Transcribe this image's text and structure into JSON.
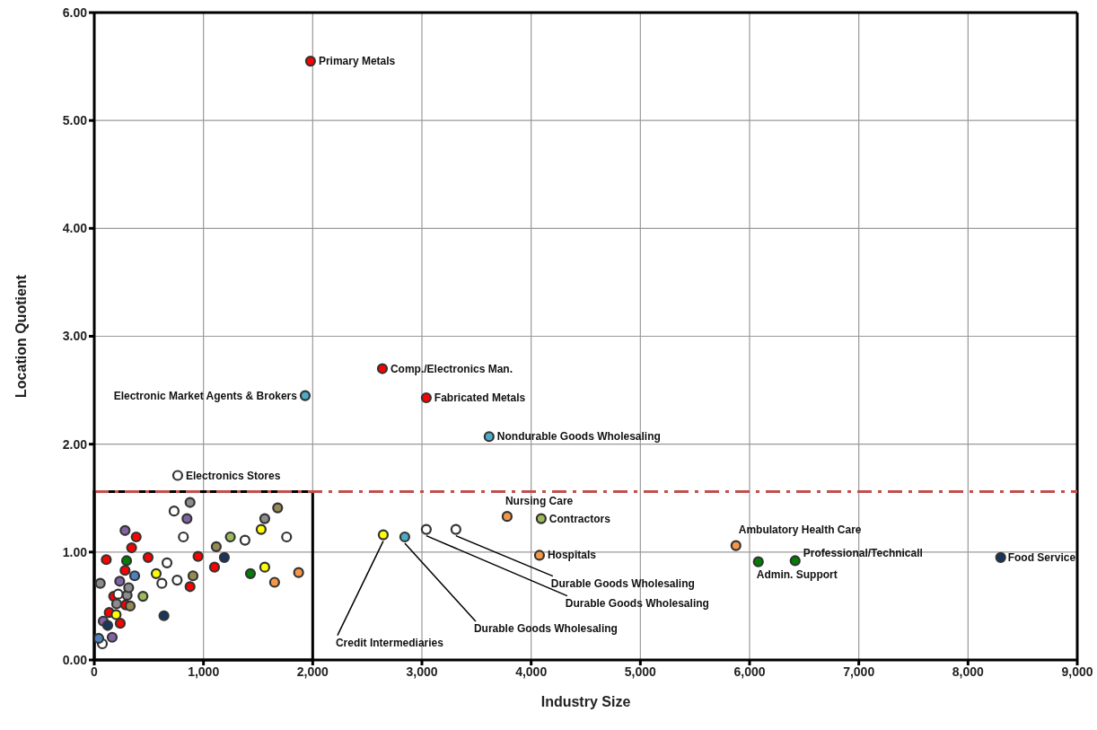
{
  "chart_data": {
    "type": "scatter",
    "xlabel": "Industry Size",
    "ylabel": "Location Quotient",
    "xlim": [
      0,
      9000
    ],
    "ylim": [
      0,
      6
    ],
    "xticks": [
      0,
      {
        "value": 1000,
        "label": "1,000"
      },
      {
        "value": 2000,
        "label": "2,000"
      },
      {
        "value": 3000,
        "label": "3,000"
      },
      {
        "value": 4000,
        "label": "4,000"
      },
      {
        "value": 5000,
        "label": "5,000"
      },
      {
        "value": 6000,
        "label": "6,000"
      },
      {
        "value": 7000,
        "label": "7,000"
      },
      {
        "value": 8000,
        "label": "8,000"
      },
      {
        "value": 9000,
        "label": "9,000"
      }
    ],
    "yticks": [
      {
        "value": 0,
        "label": "0.00"
      },
      {
        "value": 1,
        "label": "1.00"
      },
      {
        "value": 2,
        "label": "2.00"
      },
      {
        "value": 3,
        "label": "3.00"
      },
      {
        "value": 4,
        "label": "4.00"
      },
      {
        "value": 5,
        "label": "5.00"
      },
      {
        "value": 6,
        "label": "6.00"
      }
    ],
    "grid": true,
    "legend": false,
    "marker": "circle",
    "series": [
      {
        "color": "#ff0000",
        "x": [
          1980,
          2638,
          3040,
          384,
          342,
          110,
          493,
          950,
          282,
          1101,
          877,
          178,
          137,
          238,
          288
        ],
        "values": [
          5.55,
          2.7,
          2.43,
          1.14,
          1.04,
          0.93,
          0.95,
          0.96,
          0.83,
          0.86,
          0.68,
          0.59,
          0.44,
          0.34,
          0.51
        ]
      },
      {
        "color": "#4bacc6",
        "x": [
          1931,
          3615,
          2843
        ],
        "values": [
          2.45,
          2.07,
          1.14
        ]
      },
      {
        "color": "#ffffff",
        "x": [
          764,
          3040,
          3311,
          731,
          816,
          1380,
          1761,
          666,
          619,
          759,
          219,
          74
        ],
        "values": [
          1.71,
          1.21,
          1.21,
          1.38,
          1.14,
          1.11,
          1.14,
          0.9,
          0.71,
          0.74,
          0.61,
          0.15
        ]
      },
      {
        "color": "#8c8c8c",
        "x": [
          877,
          1561,
          55,
          301,
          205,
          315
        ],
        "values": [
          1.46,
          1.31,
          0.71,
          0.6,
          0.52,
          0.67
        ]
      },
      {
        "color": "#8064a2",
        "x": [
          849,
          282,
          233,
          82,
          164
        ],
        "values": [
          1.31,
          1.2,
          0.73,
          0.36,
          0.21
        ]
      },
      {
        "color": "#008000",
        "x": [
          6080,
          6417,
          296,
          1430
        ],
        "values": [
          0.91,
          0.92,
          0.92,
          0.8
        ]
      },
      {
        "color": "#4f81bd",
        "x": [
          370,
          41
        ],
        "values": [
          0.78,
          0.2
        ]
      },
      {
        "color": "#ffff00",
        "x": [
          2646,
          567,
          1528,
          1561,
          200
        ],
        "values": [
          1.16,
          0.8,
          1.21,
          0.86,
          0.42
        ]
      },
      {
        "color": "#948a54",
        "x": [
          1679,
          1117,
          904,
          329
        ],
        "values": [
          1.41,
          1.05,
          0.78,
          0.5
        ]
      },
      {
        "color": "#9bbb59",
        "x": [
          4092,
          1246,
          446
        ],
        "values": [
          1.31,
          1.14,
          0.59
        ]
      },
      {
        "color": "#17375e",
        "x": [
          8299,
          1191,
          638,
          123
        ],
        "values": [
          0.95,
          0.95,
          0.41,
          0.32
        ]
      },
      {
        "color": "#f79646",
        "x": [
          3780,
          4076,
          5875,
          1871,
          1651
        ],
        "values": [
          1.33,
          0.97,
          1.06,
          0.81,
          0.72
        ]
      }
    ],
    "ref_lines": [
      {
        "axis": "y",
        "value": 1.56,
        "color": "#c0504d",
        "line_style": "dashdot"
      }
    ],
    "annotations": [
      {
        "text": "Primary Metals",
        "x": 1980,
        "y": 5.55
      },
      {
        "text": "Comp./Electronics Man.",
        "x": 2638,
        "y": 2.7
      },
      {
        "text": "Fabricated Metals",
        "x": 3040,
        "y": 2.43
      },
      {
        "text": "Electronic Market Agents & Brokers",
        "x": 1931,
        "y": 2.45
      },
      {
        "text": "Nondurable Goods Wholesaling",
        "x": 3615,
        "y": 2.07
      },
      {
        "text": "Electronics Stores",
        "x": 764,
        "y": 1.71
      },
      {
        "text": "Nursing Care",
        "x": 3780,
        "y": 1.33
      },
      {
        "text": "Contractors",
        "x": 4092,
        "y": 1.31
      },
      {
        "text": "Hospitals",
        "x": 4076,
        "y": 0.97
      },
      {
        "text": "Ambulatory Health Care",
        "x": 5875,
        "y": 1.06
      },
      {
        "text": "Professional/Technicall",
        "x": 6417,
        "y": 0.92
      },
      {
        "text": "Admin. Support",
        "x": 6080,
        "y": 0.91
      },
      {
        "text": "Food Service",
        "x": 8299,
        "y": 0.95
      },
      {
        "text": "Credit Intermediaries",
        "x": 2646,
        "y": 1.16
      },
      {
        "text": "Durable Goods Wholesaling",
        "x": 2843,
        "y": 1.14
      },
      {
        "text": "Durable Goods Wholesaling",
        "x": 3040,
        "y": 1.21
      },
      {
        "text": "Durable Goods Wholesaling",
        "x": 3311,
        "y": 1.21
      }
    ]
  }
}
